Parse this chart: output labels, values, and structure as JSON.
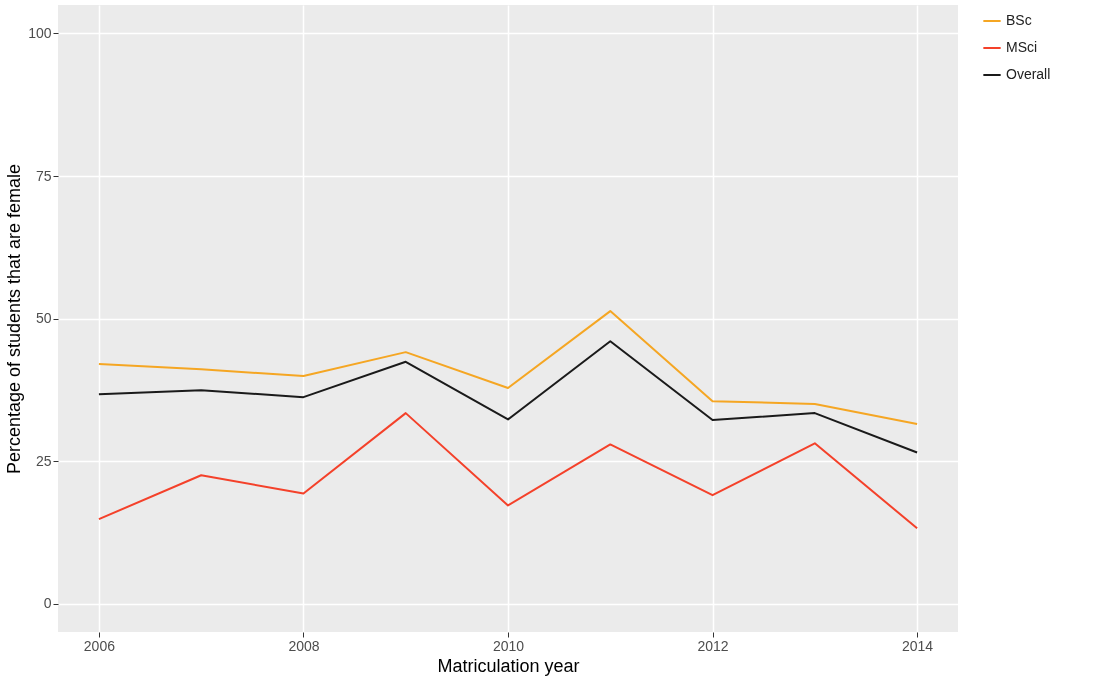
{
  "chart_data": {
    "type": "line",
    "xlabel": "Matriculation year",
    "ylabel": "Percentage of students that are female",
    "x": [
      2006,
      2007,
      2008,
      2009,
      2010,
      2011,
      2012,
      2013,
      2014
    ],
    "series": [
      {
        "name": "BSc",
        "color": "#f5a623",
        "values": [
          42.0,
          41.1,
          39.9,
          44.1,
          37.8,
          51.3,
          35.5,
          35.0,
          31.5
        ]
      },
      {
        "name": "MSci",
        "color": "#f4412a",
        "values": [
          14.8,
          22.5,
          19.3,
          33.4,
          17.2,
          27.9,
          19.0,
          28.1,
          13.2
        ]
      },
      {
        "name": "Overall",
        "color": "#1a1a1a",
        "values": [
          36.7,
          37.4,
          36.2,
          42.4,
          32.3,
          46.0,
          32.2,
          33.4,
          26.5
        ]
      }
    ],
    "xlim": [
      2005.6,
      2014.4
    ],
    "ylim": [
      -5,
      105
    ],
    "xticks": [
      2006,
      2008,
      2010,
      2012,
      2014
    ],
    "yticks": [
      0,
      25,
      50,
      75,
      100
    ],
    "grid": true,
    "legend": "right"
  }
}
